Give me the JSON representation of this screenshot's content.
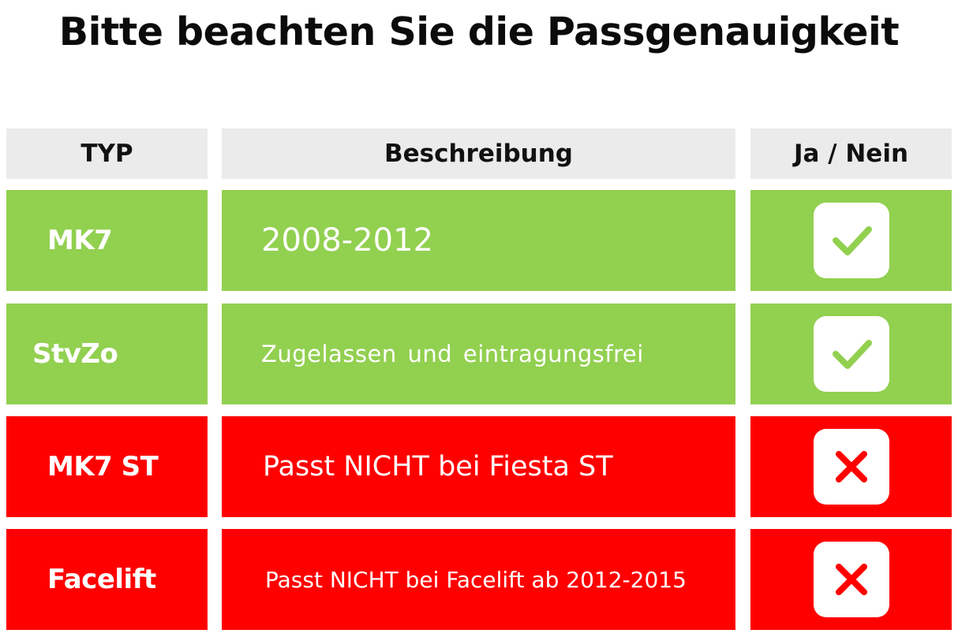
{
  "title": "Bitte beachten Sie die Passgenauigkeit",
  "headers": {
    "typ": "TYP",
    "beschreibung": "Beschreibung",
    "ja_nein": "Ja / Nein"
  },
  "rows": [
    {
      "typ": "MK7",
      "beschreibung": "2008-2012",
      "status": "ja",
      "icon": "check-icon",
      "row_color": "#92d050"
    },
    {
      "typ": "StvZo",
      "beschreibung": "Zugelassen und eintragungsfrei",
      "status": "ja",
      "icon": "check-icon",
      "row_color": "#92d050"
    },
    {
      "typ": "MK7 ST",
      "beschreibung": "Passt NICHT bei Fiesta ST",
      "status": "nein",
      "icon": "cross-icon",
      "row_color": "#ff0000"
    },
    {
      "typ": "Facelift",
      "beschreibung": "Passt NICHT bei Facelift ab 2012-2015",
      "status": "nein",
      "icon": "cross-icon",
      "row_color": "#ff0000"
    }
  ],
  "colors": {
    "header_bg": "#ebebeb",
    "green": "#92d050",
    "red": "#ff0000",
    "check": "#92d050",
    "cross": "#ff0000"
  }
}
